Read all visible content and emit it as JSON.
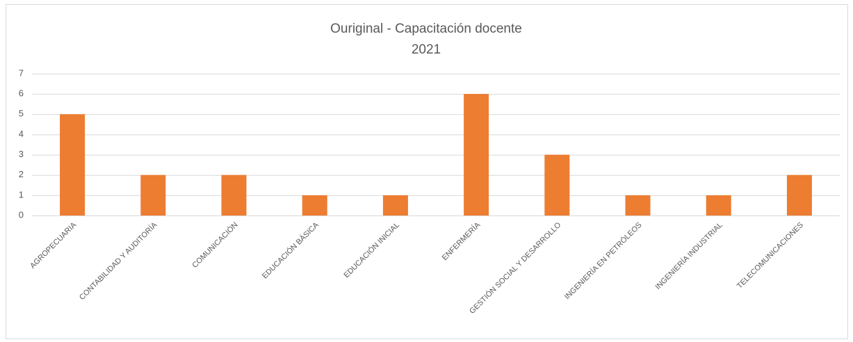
{
  "chart_data": {
    "type": "bar",
    "title": "Ouriginal - Capacitación docente",
    "subtitle": "2021",
    "categories": [
      "AGROPECUARIA",
      "CONTABILIDAD Y AUDITORÍA",
      "COMUNICACIÓN",
      "EDUCACIÓN BÁSICA",
      "EDUCACIÓN INICIAL",
      "ENFERMERÍA",
      "GESTIÓN SOCIAL Y DESARROLLO",
      "INGENIERÍA EN PETRÓLEOS",
      "INGENIERÍA INDUSTRIAL",
      "TELECOMUNICACIONES"
    ],
    "values": [
      5,
      2,
      2,
      1,
      1,
      6,
      3,
      1,
      1,
      2
    ],
    "color": "#ed7d31",
    "ylim": [
      0,
      7
    ],
    "yticks": [
      0,
      1,
      2,
      3,
      4,
      5,
      6,
      7
    ],
    "grid": true
  }
}
